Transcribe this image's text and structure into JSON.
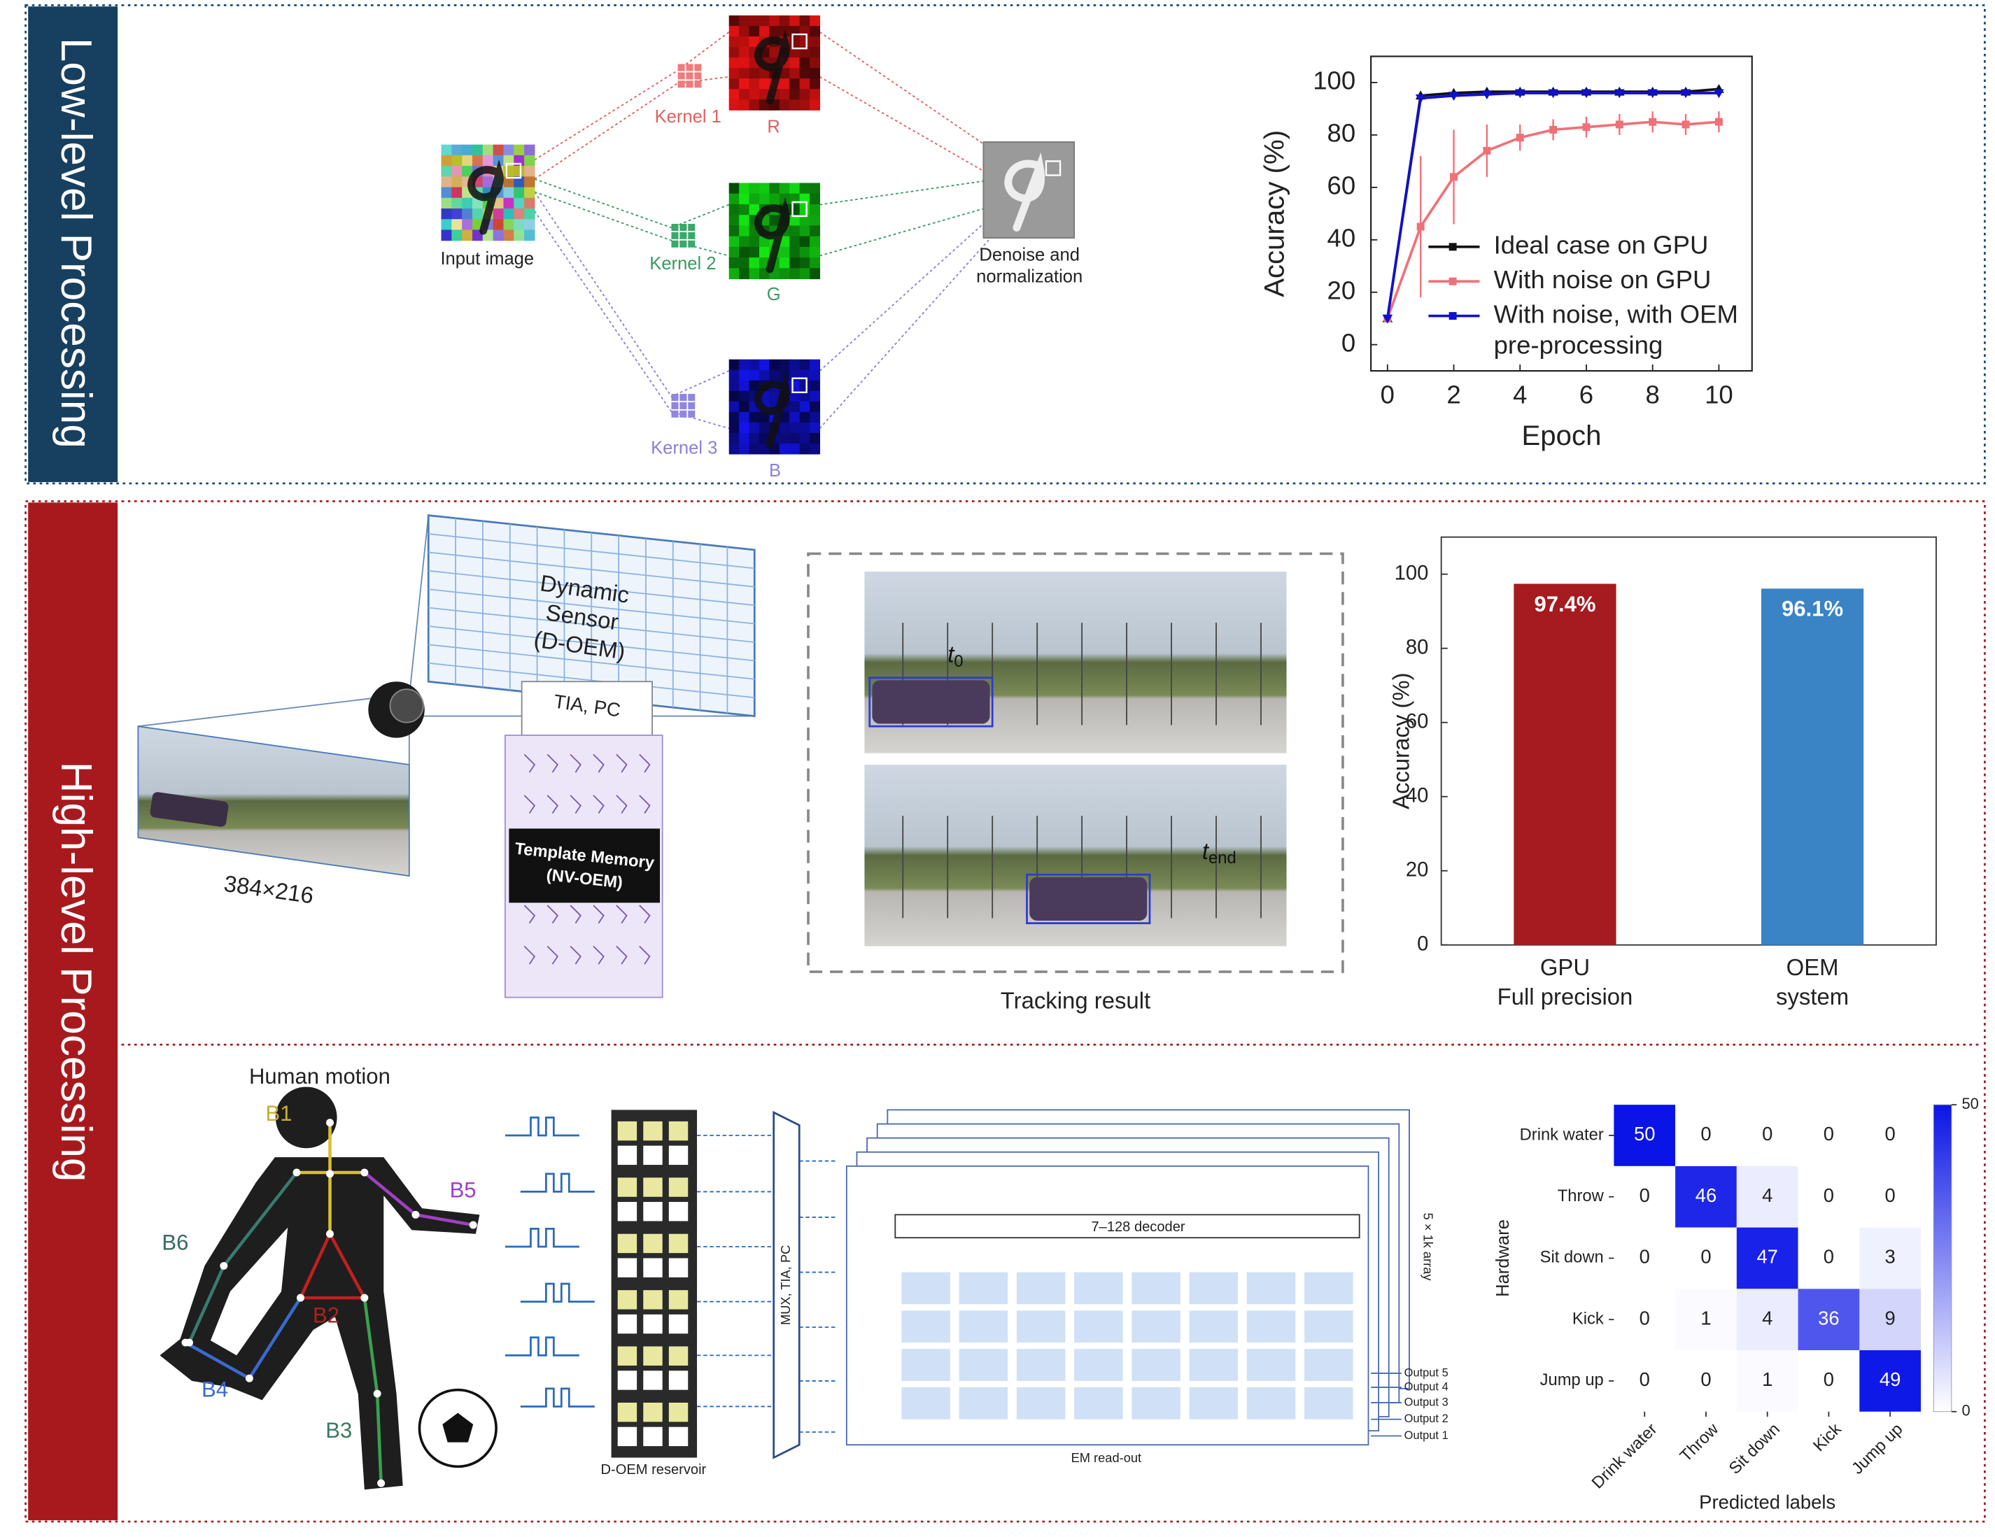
{
  "panels": {
    "low_level": "Low-level Processing",
    "high_level": "High-level Processing"
  },
  "denoising": {
    "input": "Input image",
    "kernels": [
      "Kernel 1",
      "Kernel 2",
      "Kernel 3"
    ],
    "channels": [
      "R",
      "G",
      "B"
    ],
    "output": [
      "Denoise and",
      "normalization"
    ]
  },
  "tracking": {
    "sensor": [
      "Dynamic",
      "Sensor",
      "(D-OEM)"
    ],
    "readout": "TIA, PC",
    "memory": [
      "Template Memory",
      "(NV-OEM)"
    ],
    "resolution": "384×216",
    "start_time": [
      "t",
      "0"
    ],
    "end_time": [
      "t",
      "end"
    ],
    "caption": "Tracking result"
  },
  "motion": {
    "title": "Human motion",
    "bones": [
      "B1",
      "B2",
      "B3",
      "B4",
      "B5",
      "B6"
    ],
    "reservoir": "D-OEM reservoir",
    "mux": "MUX, TIA, PC",
    "decoder": "7–128 decoder",
    "readout": "EM read-out",
    "array": "5 × 1k array",
    "outputs": [
      "Output 1",
      "Output 2",
      "Output 3",
      "Output 4",
      "Output 5"
    ]
  },
  "chart_data": [
    {
      "type": "line",
      "xlabel": "Epoch",
      "ylabel": "Accuracy (%)",
      "x": [
        0,
        1,
        2,
        3,
        4,
        5,
        6,
        7,
        8,
        9,
        10
      ],
      "series": [
        {
          "name": "Ideal case on GPU",
          "color": "#111111",
          "marker": "triangle-up",
          "values": [
            10,
            95,
            96,
            96.5,
            96.5,
            96.5,
            96.5,
            96.5,
            96.5,
            96.5,
            97.5
          ]
        },
        {
          "name": "With noise on GPU",
          "color": "#f07078",
          "marker": "square",
          "values": [
            10,
            45,
            64,
            74,
            79,
            82,
            83,
            84,
            85,
            84,
            85
          ],
          "errors": [
            0,
            27,
            18,
            10,
            5,
            4,
            4,
            4,
            4,
            4,
            4
          ]
        },
        {
          "name": "With noise, with OEM pre-processing",
          "color": "#1010d0",
          "marker": "triangle-down",
          "values": [
            10,
            94,
            95,
            95.5,
            96,
            96,
            96,
            96,
            96,
            96,
            96
          ]
        }
      ],
      "xlim": [
        -0.5,
        11
      ],
      "xticks": [
        0,
        2,
        4,
        6,
        8,
        10
      ],
      "ylim": [
        -10,
        110
      ],
      "yticks": [
        0,
        20,
        40,
        60,
        80,
        100
      ]
    },
    {
      "type": "bar",
      "ylabel": "Accuracy (%)",
      "categories": [
        [
          "GPU",
          "Full precision"
        ],
        [
          "OEM",
          "system"
        ]
      ],
      "values": [
        97.4,
        96.1
      ],
      "value_labels": [
        "97.4%",
        "96.1%"
      ],
      "colors": [
        "#a51b20",
        "#3a83c5"
      ],
      "ylim": [
        0,
        110
      ],
      "yticks": [
        0,
        20,
        40,
        60,
        80,
        100
      ]
    },
    {
      "type": "heatmap",
      "xlabel": "Predicted labels",
      "ylabel": "Hardware",
      "x_categories": [
        "Drink water",
        "Throw",
        "Sit down",
        "Kick",
        "Jump up"
      ],
      "y_categories": [
        "Drink water",
        "Throw",
        "Sit down",
        "Kick",
        "Jump up"
      ],
      "values": [
        [
          50,
          0,
          0,
          0,
          0
        ],
        [
          0,
          46,
          4,
          0,
          0
        ],
        [
          0,
          0,
          47,
          0,
          3
        ],
        [
          0,
          1,
          4,
          36,
          9
        ],
        [
          0,
          0,
          1,
          0,
          49
        ]
      ],
      "color": "#0a14e6",
      "colorbar_lim": [
        0,
        50
      ],
      "colorbar_ticks": [
        0,
        50
      ]
    }
  ]
}
